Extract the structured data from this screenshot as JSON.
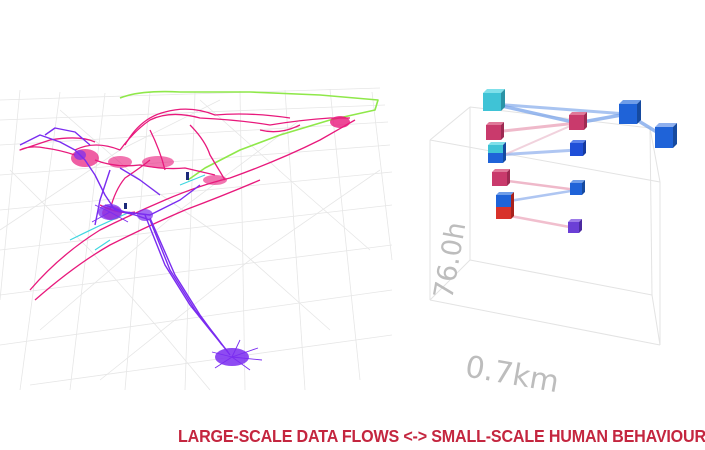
{
  "caption": "LARGE-SCALE DATA FLOWS <-> SMALL-SCALE HUMAN BEHAVIOUR",
  "cube_axes": {
    "vertical_label": "76.0h",
    "horizontal_label": "0.7km"
  },
  "colors": {
    "caption": "#c4263f",
    "map_grid": "#e4e4e4",
    "trace_magenta": "#e8197c",
    "trace_purple": "#7a2cf0",
    "trace_green": "#8fe84a",
    "trace_cyan": "#3fd6e0",
    "box_cyan": "#3fc3d6",
    "box_blue": "#1f63d8",
    "box_pink": "#c93a6c",
    "box_purple": "#6b3fd6",
    "box_red": "#d8322b"
  }
}
